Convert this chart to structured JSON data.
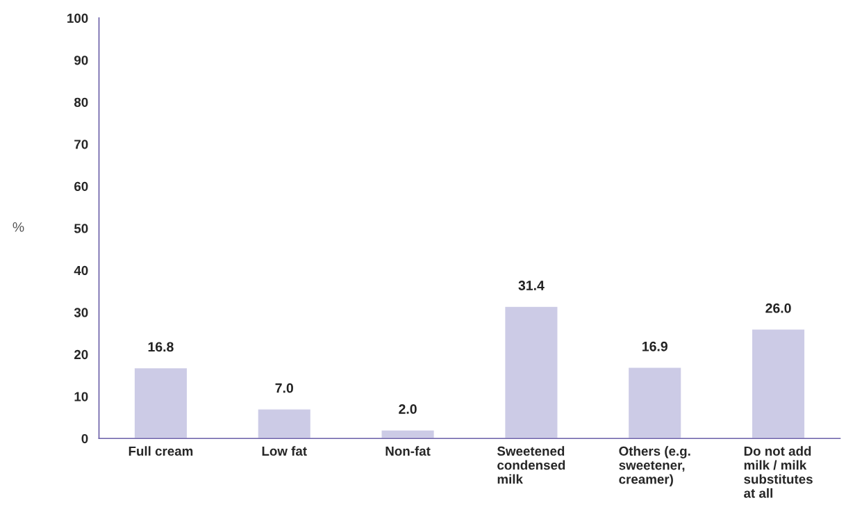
{
  "chart_data": {
    "type": "bar",
    "ylabel": "%",
    "categories": [
      "Full cream",
      "Low fat",
      "Non-fat",
      "Sweetened\ncondensed\nmilk",
      "Others (e.g.\nsweetener,\ncreamer)",
      "Do not add\nmilk / milk\nsubstitutes\nat all"
    ],
    "values": [
      16.8,
      7.0,
      2.0,
      31.4,
      16.9,
      26.0
    ],
    "value_labels": [
      "16.8",
      "7.0",
      "2.0",
      "31.4",
      "16.9",
      "26.0"
    ],
    "color": "#cccbe6",
    "ylim": [
      0,
      100
    ],
    "yticks": [
      0,
      10,
      20,
      30,
      40,
      50,
      60,
      70,
      80,
      90,
      100
    ],
    "grid": false,
    "legend": false
  }
}
